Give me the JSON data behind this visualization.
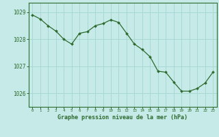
{
  "x": [
    0,
    1,
    2,
    3,
    4,
    5,
    6,
    7,
    8,
    9,
    10,
    11,
    12,
    13,
    14,
    15,
    16,
    17,
    18,
    19,
    20,
    21,
    22,
    23
  ],
  "y": [
    1028.9,
    1028.75,
    1028.5,
    1028.3,
    1028.0,
    1027.82,
    1028.22,
    1028.28,
    1028.5,
    1028.58,
    1028.72,
    1028.62,
    1028.22,
    1027.82,
    1027.62,
    1027.35,
    1026.82,
    1026.78,
    1026.42,
    1026.08,
    1026.08,
    1026.18,
    1026.38,
    1026.78
  ],
  "line_color": "#2d6a2d",
  "marker_color": "#2d6a2d",
  "bg_color": "#c5eae7",
  "grid_color": "#a8d8d4",
  "axis_color": "#2d6a2d",
  "tick_color": "#2d6a2d",
  "label_color": "#2d6a2d",
  "ylabel_ticks": [
    1026,
    1027,
    1028,
    1029
  ],
  "xlabel": "Graphe pression niveau de la mer (hPa)",
  "ylim": [
    1025.5,
    1029.35
  ],
  "xlim": [
    -0.5,
    23.5
  ]
}
